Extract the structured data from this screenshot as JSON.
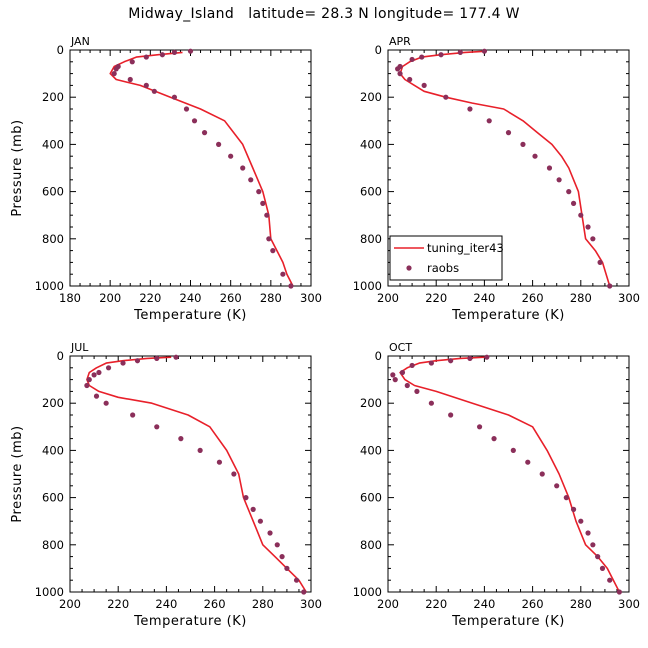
{
  "title": "Midway_Island   latitude= 28.3 N longitude= 177.4 W",
  "colors": {
    "model": "#e8202a",
    "obs": "#8b2f5a",
    "axis": "#000000"
  },
  "chart_data": [
    {
      "type": "line",
      "panel": "JAN",
      "xlabel": "Temperature (K)",
      "ylabel": "Pressure (mb)",
      "xlim": [
        180,
        300
      ],
      "ylim": [
        1000,
        0
      ],
      "xticks": [
        180,
        200,
        220,
        240,
        260,
        280,
        300
      ],
      "yticks": [
        0,
        200,
        400,
        600,
        800,
        1000
      ],
      "show_legend": false,
      "series": [
        {
          "name": "tuning_iter43",
          "style": "line",
          "temperature": [
            236,
            224,
            213,
            207,
            202,
            200,
            203,
            215,
            230,
            245,
            257,
            266,
            271,
            276,
            279,
            280,
            283,
            286,
            288,
            291
          ],
          "pressure": [
            10,
            20,
            30,
            50,
            70,
            100,
            125,
            150,
            200,
            250,
            300,
            400,
            500,
            600,
            700,
            800,
            850,
            900,
            950,
            1000
          ]
        },
        {
          "name": "raobs",
          "style": "points",
          "temperature": [
            240,
            232,
            226,
            218,
            211,
            204,
            203,
            202,
            210,
            218,
            222,
            232,
            238,
            242,
            247,
            254,
            260,
            266,
            270,
            274,
            276,
            278,
            279,
            281,
            286,
            290
          ],
          "pressure": [
            5,
            10,
            20,
            30,
            50,
            70,
            80,
            100,
            125,
            150,
            175,
            200,
            250,
            300,
            350,
            400,
            450,
            500,
            550,
            600,
            650,
            700,
            800,
            850,
            950,
            1000
          ]
        }
      ]
    },
    {
      "type": "line",
      "panel": "APR",
      "xlabel": "Temperature (K)",
      "ylabel": "Pressure (mb)",
      "xlim": [
        200,
        300
      ],
      "ylim": [
        1000,
        0
      ],
      "xticks": [
        200,
        220,
        240,
        260,
        280,
        300
      ],
      "yticks": [
        0,
        200,
        400,
        600,
        800,
        1000
      ],
      "show_legend": true,
      "series": [
        {
          "name": "tuning_iter43",
          "style": "line",
          "temperature": [
            241,
            232,
            222,
            214,
            209,
            206,
            205,
            207,
            211,
            215,
            224,
            235,
            248,
            256,
            262,
            268,
            272,
            275,
            277,
            279,
            282,
            286,
            289,
            292
          ],
          "pressure": [
            5,
            10,
            20,
            30,
            50,
            70,
            100,
            125,
            150,
            175,
            200,
            225,
            250,
            300,
            350,
            400,
            450,
            500,
            550,
            600,
            800,
            850,
            900,
            1000
          ]
        },
        {
          "name": "raobs",
          "style": "points",
          "temperature": [
            240,
            230,
            222,
            214,
            210,
            205,
            204,
            205,
            209,
            215,
            224,
            234,
            242,
            250,
            256,
            261,
            267,
            271,
            275,
            277,
            280,
            283,
            285,
            288,
            292
          ],
          "pressure": [
            5,
            10,
            20,
            30,
            40,
            70,
            80,
            100,
            125,
            150,
            200,
            250,
            300,
            350,
            400,
            450,
            500,
            550,
            600,
            650,
            700,
            750,
            800,
            900,
            1000
          ]
        }
      ]
    },
    {
      "type": "line",
      "panel": "JUL",
      "xlabel": "Temperature (K)",
      "ylabel": "Pressure (mb)",
      "xlim": [
        200,
        300
      ],
      "ylim": [
        1000,
        0
      ],
      "xticks": [
        200,
        220,
        240,
        260,
        280,
        300
      ],
      "yticks": [
        0,
        200,
        400,
        600,
        800,
        1000
      ],
      "show_legend": false,
      "series": [
        {
          "name": "tuning_iter43",
          "style": "line",
          "temperature": [
            242,
            232,
            222,
            215,
            211,
            208,
            207,
            208,
            212,
            220,
            234,
            249,
            258,
            265,
            270,
            272,
            276,
            280,
            285,
            290,
            295,
            298
          ],
          "pressure": [
            5,
            10,
            20,
            30,
            50,
            70,
            100,
            125,
            150,
            175,
            200,
            250,
            300,
            400,
            500,
            600,
            700,
            800,
            850,
            900,
            950,
            1000
          ]
        },
        {
          "name": "raobs",
          "style": "points",
          "temperature": [
            244,
            236,
            228,
            222,
            216,
            212,
            210,
            208,
            207,
            211,
            215,
            226,
            236,
            246,
            254,
            262,
            268,
            273,
            276,
            279,
            283,
            286,
            288,
            290,
            294,
            297
          ],
          "pressure": [
            5,
            10,
            20,
            30,
            50,
            70,
            80,
            100,
            125,
            170,
            200,
            250,
            300,
            350,
            400,
            450,
            500,
            600,
            650,
            700,
            750,
            800,
            850,
            900,
            950,
            1000
          ]
        }
      ]
    },
    {
      "type": "line",
      "panel": "OCT",
      "xlabel": "Temperature (K)",
      "ylabel": "Pressure (mb)",
      "xlim": [
        200,
        300
      ],
      "ylim": [
        1000,
        0
      ],
      "xticks": [
        200,
        220,
        240,
        260,
        280,
        300
      ],
      "yticks": [
        0,
        200,
        400,
        600,
        800,
        1000
      ],
      "show_legend": false,
      "series": [
        {
          "name": "tuning_iter43",
          "style": "line",
          "temperature": [
            240,
            230,
            220,
            213,
            208,
            205,
            207,
            211,
            220,
            235,
            250,
            260,
            266,
            271,
            275,
            278,
            282,
            287,
            291,
            296
          ],
          "pressure": [
            5,
            10,
            20,
            30,
            50,
            70,
            100,
            125,
            150,
            200,
            250,
            300,
            400,
            500,
            600,
            700,
            800,
            850,
            900,
            1000
          ]
        },
        {
          "name": "raobs",
          "style": "points",
          "temperature": [
            241,
            234,
            226,
            218,
            210,
            206,
            202,
            203,
            208,
            212,
            218,
            226,
            238,
            244,
            252,
            258,
            264,
            270,
            274,
            277,
            280,
            283,
            285,
            287,
            289,
            292,
            296
          ],
          "pressure": [
            5,
            10,
            20,
            30,
            40,
            70,
            80,
            100,
            125,
            150,
            200,
            250,
            300,
            350,
            400,
            450,
            500,
            550,
            600,
            650,
            700,
            750,
            800,
            850,
            900,
            950,
            1000
          ]
        }
      ]
    }
  ]
}
